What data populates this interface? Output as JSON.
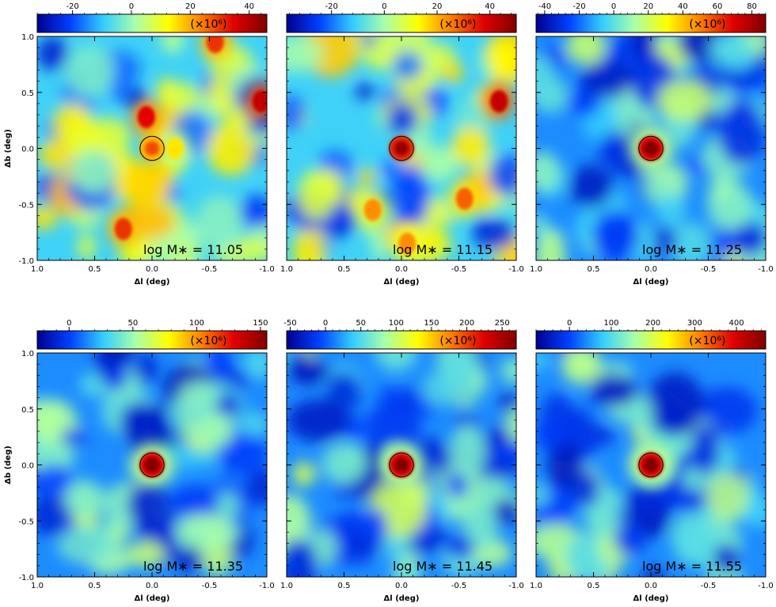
{
  "figure": {
    "x_axis_label": "Δl (deg)",
    "y_axis_label": "Δb (deg)",
    "colorbar_unit": "(×10⁶)",
    "mass_label_prefix": "log M∗ = ",
    "colormap": [
      "#00008f",
      "#0040ff",
      "#33ccff",
      "#aaffaa",
      "#ffff00",
      "#ff8000",
      "#e00000",
      "#800000"
    ],
    "circle_color": "#000000"
  },
  "chart_data": [
    {
      "type": "heatmap",
      "panel": "log M∗ = 11.05",
      "log_mstar": "11.05",
      "xlabel": "Δl (deg)",
      "ylabel": "Δb (deg)",
      "xlim": [
        1.0,
        -1.0
      ],
      "ylim": [
        -1.0,
        1.0
      ],
      "x_ticks": [
        "1.0",
        "0.5",
        "0.0",
        "-0.5",
        "-1.0"
      ],
      "y_ticks": [
        "1.0",
        "0.5",
        "0.0",
        "-0.5",
        "-1.0"
      ],
      "colorbar": {
        "range": [
          -32,
          46
        ],
        "ticks": [
          -20,
          0,
          20,
          40
        ],
        "unit": "(×10⁶)"
      },
      "central_peak": {
        "l": 0.0,
        "b": 0.0,
        "relative_strength": 0.35
      },
      "hotspots": [
        {
          "l": 0.05,
          "b": 0.28,
          "level": 0.85
        },
        {
          "l": -0.95,
          "b": 0.42,
          "level": 0.9
        },
        {
          "l": -0.55,
          "b": 0.95,
          "level": 0.8
        },
        {
          "l": 0.25,
          "b": -0.72,
          "level": 0.8
        },
        {
          "l": -0.2,
          "b": 0.0,
          "level": 0.6
        }
      ],
      "aperture_circle": {
        "l": 0.0,
        "b": 0.0,
        "radius_deg": 0.07
      }
    },
    {
      "type": "heatmap",
      "panel": "log M∗ = 11.15",
      "log_mstar": "11.15",
      "xlabel": "Δl (deg)",
      "ylabel": "",
      "xlim": [
        1.0,
        -1.0
      ],
      "ylim": [
        -1.0,
        1.0
      ],
      "x_ticks": [
        "1.0",
        "0.5",
        "0.0",
        "-0.5",
        "-1.0"
      ],
      "y_ticks": [],
      "colorbar": {
        "range": [
          -37,
          50
        ],
        "ticks": [
          -20,
          0,
          20,
          40
        ],
        "unit": "(×10⁶)"
      },
      "central_peak": {
        "l": 0.0,
        "b": 0.0,
        "relative_strength": 0.9
      },
      "hotspots": [
        {
          "l": -0.85,
          "b": 0.42,
          "level": 0.9
        },
        {
          "l": -0.55,
          "b": -0.45,
          "level": 0.75
        },
        {
          "l": 0.25,
          "b": -0.55,
          "level": 0.7
        },
        {
          "l": -0.05,
          "b": -0.85,
          "level": 0.7
        }
      ],
      "aperture_circle": {
        "l": 0.0,
        "b": 0.0,
        "radius_deg": 0.07
      }
    },
    {
      "type": "heatmap",
      "panel": "log M∗ = 11.25",
      "log_mstar": "11.25",
      "xlabel": "Δl (deg)",
      "ylabel": "",
      "xlim": [
        1.0,
        -1.0
      ],
      "ylim": [
        -1.0,
        1.0
      ],
      "x_ticks": [
        "1.0",
        "0.5",
        "0.0",
        "-0.5",
        "-1.0"
      ],
      "y_ticks": [],
      "colorbar": {
        "range": [
          -45,
          88
        ],
        "ticks": [
          -40,
          -20,
          0,
          20,
          40,
          60,
          80
        ],
        "unit": "(×10⁶)"
      },
      "central_peak": {
        "l": 0.0,
        "b": 0.0,
        "relative_strength": 1.0
      },
      "hotspots": [],
      "aperture_circle": {
        "l": 0.0,
        "b": 0.0,
        "radius_deg": 0.07
      }
    },
    {
      "type": "heatmap",
      "panel": "log M∗ = 11.35",
      "log_mstar": "11.35",
      "xlabel": "Δl (deg)",
      "ylabel": "Δb (deg)",
      "xlim": [
        1.0,
        -1.0
      ],
      "ylim": [
        -1.0,
        1.0
      ],
      "x_ticks": [
        "1.0",
        "0.5",
        "0.0",
        "-0.5",
        "-1.0"
      ],
      "y_ticks": [
        "1.0",
        "0.5",
        "0.0",
        "-0.5",
        "-1.0"
      ],
      "colorbar": {
        "range": [
          -25,
          155
        ],
        "ticks": [
          0,
          50,
          100,
          150
        ],
        "unit": "(×10⁶)"
      },
      "central_peak": {
        "l": 0.0,
        "b": 0.0,
        "relative_strength": 1.0
      },
      "hotspots": [],
      "aperture_circle": {
        "l": 0.0,
        "b": 0.0,
        "radius_deg": 0.07
      }
    },
    {
      "type": "heatmap",
      "panel": "log M∗ = 11.45",
      "log_mstar": "11.45",
      "xlabel": "Δl (deg)",
      "ylabel": "",
      "xlim": [
        1.0,
        -1.0
      ],
      "ylim": [
        -1.0,
        1.0
      ],
      "x_ticks": [
        "1.0",
        "0.5",
        "0.0",
        "-0.5",
        "-1.0"
      ],
      "y_ticks": [],
      "colorbar": {
        "range": [
          -55,
          270
        ],
        "ticks": [
          -50,
          0,
          50,
          100,
          150,
          200,
          250
        ],
        "unit": "(×10⁶)"
      },
      "central_peak": {
        "l": 0.0,
        "b": 0.0,
        "relative_strength": 1.0
      },
      "hotspots": [],
      "aperture_circle": {
        "l": 0.0,
        "b": 0.0,
        "radius_deg": 0.07
      }
    },
    {
      "type": "heatmap",
      "panel": "log M∗ = 11.55",
      "log_mstar": "11.55",
      "xlabel": "Δl (deg)",
      "ylabel": "",
      "xlim": [
        1.0,
        -1.0
      ],
      "ylim": [
        -1.0,
        1.0
      ],
      "x_ticks": [
        "1.0",
        "0.5",
        "0.0",
        "-0.5",
        "-1.0"
      ],
      "y_ticks": [],
      "colorbar": {
        "range": [
          -80,
          470
        ],
        "ticks": [
          0,
          100,
          200,
          300,
          400
        ],
        "unit": "(×10⁶)"
      },
      "central_peak": {
        "l": 0.0,
        "b": 0.0,
        "relative_strength": 1.0
      },
      "hotspots": [],
      "aperture_circle": {
        "l": 0.0,
        "b": 0.0,
        "radius_deg": 0.07
      }
    }
  ]
}
